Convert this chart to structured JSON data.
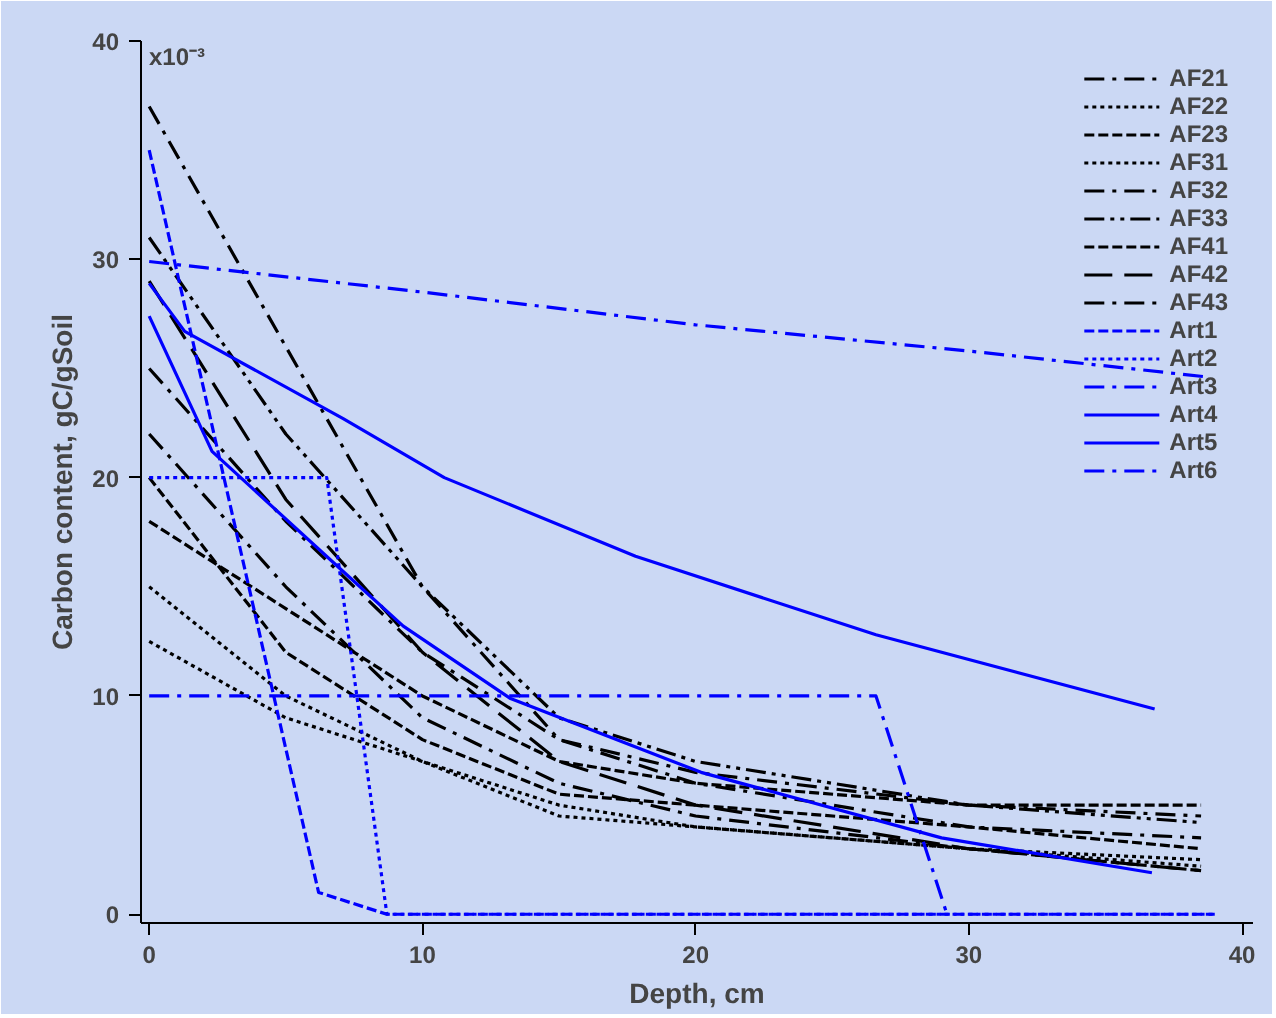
{
  "chart_data": {
    "type": "line",
    "xlabel": "Depth, cm",
    "ylabel": "Carbon content, gC/gSoil",
    "xlim": [
      -0.3,
      40.4
    ],
    "xticks": [
      0,
      10,
      20,
      30,
      40
    ],
    "ylim": [
      -0.4,
      40
    ],
    "yticks": [
      0,
      10,
      20,
      30,
      40
    ],
    "annotations": [
      "x10⁻³"
    ],
    "grid": false,
    "legend": "top right",
    "marker": "none",
    "series": [
      {
        "name": "AF21",
        "color": "#000000",
        "line_style": "dashdot",
        "x": [
          0,
          5,
          10,
          15,
          20,
          30,
          38.5
        ],
        "values": [
          37,
          26,
          15,
          8,
          6.5,
          5,
          4.5
        ]
      },
      {
        "name": "AF22",
        "color": "#000000",
        "line_style": "dotted",
        "x": [
          0,
          5,
          10,
          15,
          20,
          30,
          38.5
        ],
        "values": [
          15,
          10,
          7,
          4.5,
          4,
          3,
          2.5
        ]
      },
      {
        "name": "AF23",
        "color": "#000000",
        "line_style": "dashed",
        "x": [
          0,
          5,
          10,
          15,
          20,
          30,
          38.5
        ],
        "values": [
          18,
          14,
          10,
          7,
          6,
          5,
          5
        ]
      },
      {
        "name": "AF31",
        "color": "#000000",
        "line_style": "dotted",
        "x": [
          0,
          5,
          10,
          15,
          20,
          30,
          38.5
        ],
        "values": [
          12.5,
          9,
          7,
          5,
          4,
          3,
          2.2
        ]
      },
      {
        "name": "AF32",
        "color": "#000000",
        "line_style": "dashdot",
        "x": [
          0,
          5,
          10,
          15,
          20,
          30,
          38.5
        ],
        "values": [
          25,
          18,
          12,
          8,
          6,
          4,
          3.5
        ]
      },
      {
        "name": "AF33",
        "color": "#000000",
        "line_style": "dashdotdot",
        "x": [
          0,
          5,
          10,
          15,
          20,
          30,
          38.5
        ],
        "values": [
          31,
          22,
          15,
          9,
          7,
          5,
          4.2
        ]
      },
      {
        "name": "AF41",
        "color": "#000000",
        "line_style": "dashed",
        "x": [
          0,
          5,
          10,
          15,
          20,
          30,
          38.5
        ],
        "values": [
          20,
          12,
          8,
          5.5,
          5,
          4,
          3
        ]
      },
      {
        "name": "AF42",
        "color": "#000000",
        "line_style": "longdash",
        "x": [
          0,
          5,
          10,
          15,
          20,
          30,
          38.5
        ],
        "values": [
          29,
          19,
          12,
          7,
          5,
          3,
          2
        ]
      },
      {
        "name": "AF43",
        "color": "#000000",
        "line_style": "dashdot",
        "x": [
          0,
          5,
          10,
          15,
          20,
          30,
          38.5
        ],
        "values": [
          22,
          15,
          9,
          6,
          4.5,
          3,
          2
        ]
      },
      {
        "name": "Art1",
        "color": "#0000ff",
        "line_style": "dashed",
        "x": [
          0,
          6.2,
          8.7,
          39
        ],
        "values": [
          35,
          1,
          0,
          0
        ]
      },
      {
        "name": "Art2",
        "color": "#0000ff",
        "line_style": "dotted",
        "x": [
          0,
          6.5,
          8.7,
          39
        ],
        "values": [
          20,
          20,
          0,
          0
        ]
      },
      {
        "name": "Art3",
        "color": "#0000ff",
        "line_style": "dashdot",
        "x": [
          0,
          10,
          20,
          30,
          38.8
        ],
        "values": [
          29.9,
          28.5,
          27,
          25.8,
          24.6
        ]
      },
      {
        "name": "Art4",
        "color": "#0000ff",
        "line_style": "solid",
        "x": [
          0,
          2.3,
          7.1,
          9.3,
          13.2,
          20.2,
          29,
          36.7
        ],
        "values": [
          27.4,
          21.2,
          15.7,
          13.2,
          9.9,
          6.5,
          3.5,
          1.9
        ]
      },
      {
        "name": "Art5",
        "color": "#0000ff",
        "line_style": "solid",
        "x": [
          0,
          1.3,
          7.1,
          10.8,
          17.8,
          26.6,
          36.8
        ],
        "values": [
          28.9,
          26.7,
          22.7,
          20,
          16.4,
          12.8,
          9.4
        ]
      },
      {
        "name": "Art6",
        "color": "#0000ff",
        "line_style": "dashdot",
        "x": [
          0,
          26.6,
          29.2
        ],
        "values": [
          10,
          10,
          0
        ]
      }
    ]
  }
}
